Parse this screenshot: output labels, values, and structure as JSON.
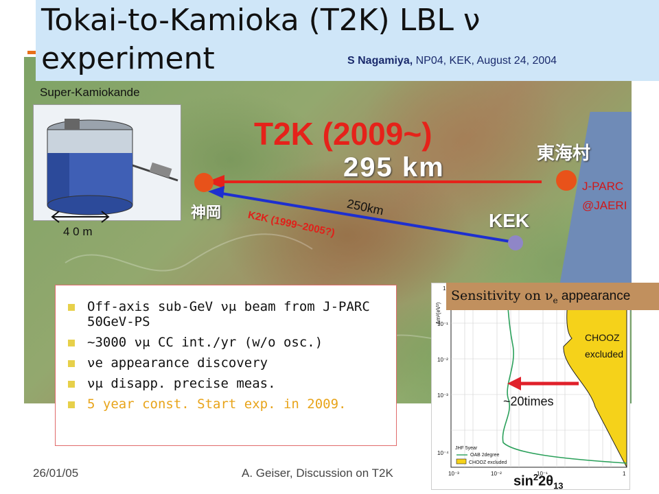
{
  "title": {
    "line1": "Tokai-to-Kamioka (T2K) LBL ν",
    "line2": "experiment"
  },
  "credit": {
    "author": "S Nagamiya,",
    "event": " NP04, KEK, August 24, 2004"
  },
  "map": {
    "super_kamiokande_label": "Super-Kamiokande",
    "detector_size": "4 0 m",
    "t2k_title": "T2K (2009~)",
    "t2k_distance": "295 km",
    "tokai_label": "東海村",
    "kamioka_label": "神岡",
    "kek_label": "KEK",
    "jparc_line1": "J-PARC",
    "jparc_line2": "@JAERI",
    "k2k_distance": "250km",
    "k2k_label": "K2K (1999~2005?)"
  },
  "bullets": [
    "Off-axis sub-GeV νμ beam from J-PARC 50GeV-PS",
    "~3000 νμ CC int./yr (w/o osc.)",
    "νe appearance discovery",
    "νμ disapp. precise meas.",
    "5 year const. Start exp. in 2009."
  ],
  "plot": {
    "banner_prefix": "Sensitivity on ν",
    "banner_sub": "e",
    "banner_suffix": " appearance",
    "chooz_line1": "CHOOZ",
    "chooz_line2": "excluded",
    "improvement": "~20times",
    "axis_label_main": "sin",
    "axis_label_sup": "2",
    "axis_label_mid": "2θ",
    "axis_label_sub": "13",
    "y_axis_title": "Δm²(eV²)",
    "legend": [
      "JHF 5year",
      "OAB 2degree",
      "CHOOZ excluded"
    ],
    "y_ticks": [
      "1",
      "10⁻¹",
      "10⁻²",
      "10⁻³",
      "10⁻⁴"
    ],
    "x_ticks": [
      "10⁻³",
      "10⁻²",
      "10⁻¹",
      "1"
    ],
    "colors": {
      "chooz_fill": "#f5d21a",
      "sensitivity_line": "#2aa05a",
      "arrow": "#e0202a"
    }
  },
  "footer": {
    "date": "26/01/05",
    "author": "A. Geiser, Discussion on T2K"
  },
  "colors": {
    "banner": "#cfe6f8",
    "accent_red": "#e5221a",
    "beamline": "#e5221a",
    "k2k_line": "#1d2fd0"
  }
}
